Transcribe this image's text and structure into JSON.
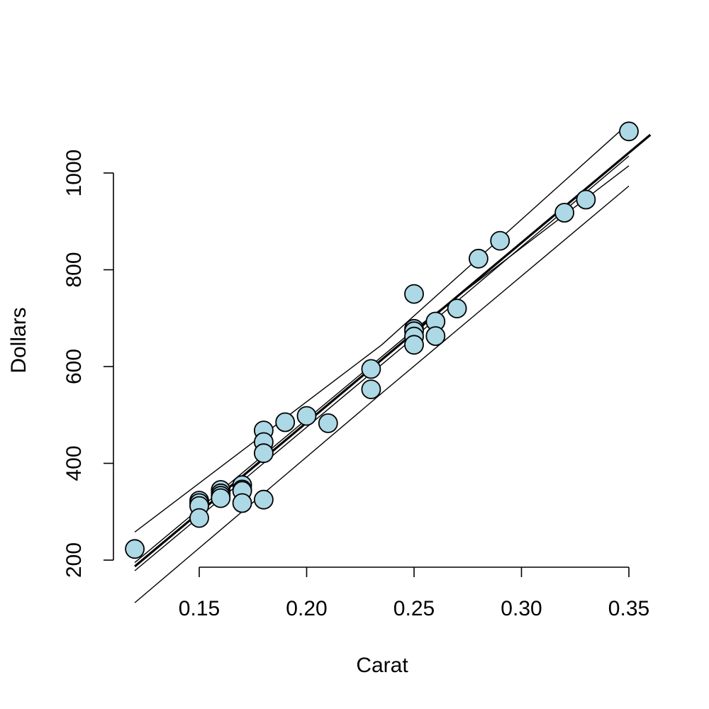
{
  "chart_data": {
    "type": "scatter",
    "title": "",
    "xlabel": "Carat",
    "ylabel": "Dollars",
    "xlim": [
      0.12,
      0.35
    ],
    "ylim": [
      200,
      1000
    ],
    "x_ticks": [
      0.15,
      0.2,
      0.25,
      0.3,
      0.35
    ],
    "x_tick_labels": [
      "0.15",
      "0.20",
      "0.25",
      "0.30",
      "0.35"
    ],
    "y_ticks": [
      200,
      400,
      600,
      800,
      1000
    ],
    "y_tick_labels": [
      "200",
      "400",
      "600",
      "800",
      "1000"
    ],
    "grid": false,
    "point_color": "#add8e6",
    "points": [
      {
        "x": 0.12,
        "y": 223
      },
      {
        "x": 0.15,
        "y": 323
      },
      {
        "x": 0.15,
        "y": 318
      },
      {
        "x": 0.15,
        "y": 312
      },
      {
        "x": 0.15,
        "y": 287
      },
      {
        "x": 0.16,
        "y": 345
      },
      {
        "x": 0.16,
        "y": 338
      },
      {
        "x": 0.16,
        "y": 333
      },
      {
        "x": 0.16,
        "y": 328
      },
      {
        "x": 0.17,
        "y": 355
      },
      {
        "x": 0.17,
        "y": 346
      },
      {
        "x": 0.17,
        "y": 343
      },
      {
        "x": 0.17,
        "y": 318
      },
      {
        "x": 0.18,
        "y": 468
      },
      {
        "x": 0.18,
        "y": 444
      },
      {
        "x": 0.18,
        "y": 421
      },
      {
        "x": 0.18,
        "y": 325
      },
      {
        "x": 0.19,
        "y": 485
      },
      {
        "x": 0.2,
        "y": 498
      },
      {
        "x": 0.21,
        "y": 483
      },
      {
        "x": 0.23,
        "y": 595
      },
      {
        "x": 0.23,
        "y": 553
      },
      {
        "x": 0.25,
        "y": 750
      },
      {
        "x": 0.25,
        "y": 678
      },
      {
        "x": 0.25,
        "y": 673
      },
      {
        "x": 0.25,
        "y": 662
      },
      {
        "x": 0.25,
        "y": 645
      },
      {
        "x": 0.26,
        "y": 693
      },
      {
        "x": 0.26,
        "y": 663
      },
      {
        "x": 0.27,
        "y": 720
      },
      {
        "x": 0.28,
        "y": 823
      },
      {
        "x": 0.29,
        "y": 860
      },
      {
        "x": 0.32,
        "y": 918
      },
      {
        "x": 0.33,
        "y": 945
      },
      {
        "x": 0.35,
        "y": 1086
      }
    ],
    "fit_line": {
      "x0": 0.12,
      "x1": 0.36,
      "y0": 187,
      "y1": 1079
    },
    "confidence_band": {
      "upper": [
        [
          0.12,
          195
        ],
        [
          0.25,
          676
        ],
        [
          0.35,
          1015
        ]
      ],
      "lower": [
        [
          0.12,
          178
        ],
        [
          0.25,
          660
        ],
        [
          0.35,
          1035
        ]
      ]
    },
    "prediction_band": {
      "upper": [
        [
          0.12,
          258
        ],
        [
          0.235,
          645
        ],
        [
          0.35,
          1103
        ]
      ],
      "lower": [
        [
          0.12,
          112
        ],
        [
          0.235,
          545
        ],
        [
          0.35,
          973
        ]
      ]
    }
  }
}
